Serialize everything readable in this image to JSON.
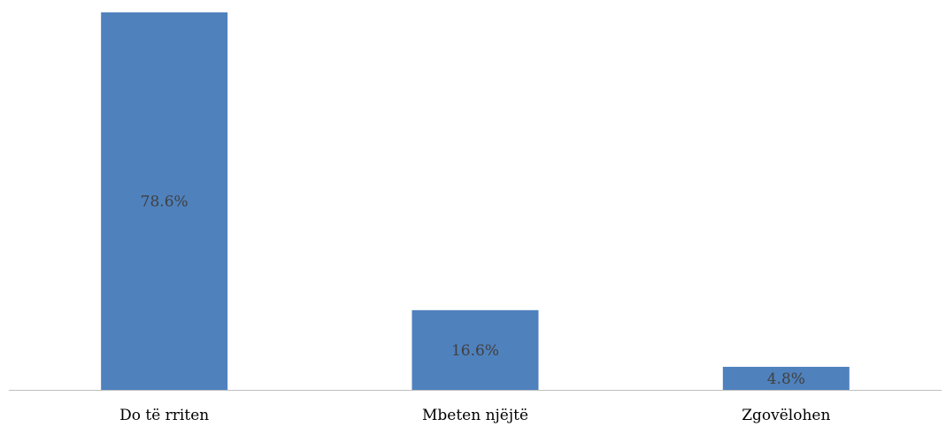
{
  "chart_data": {
    "type": "bar",
    "categories": [
      "Do të rriten",
      "Mbeten njëjtë",
      "Zgovëlohen"
    ],
    "values": [
      78.6,
      16.6,
      4.8
    ],
    "data_labels": [
      "78.6%",
      "16.6%",
      "4.8%"
    ],
    "title": "",
    "xlabel": "",
    "ylabel": "",
    "ylim": [
      0,
      78.6
    ],
    "grid": false,
    "legend": "none",
    "bar_color": "#4F81BD",
    "axis_color": "#BFBFBF"
  }
}
